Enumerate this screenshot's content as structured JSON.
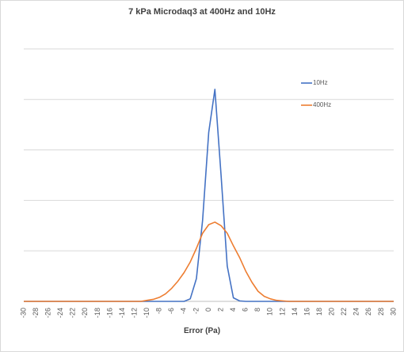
{
  "chart_data": {
    "type": "line",
    "title": "7 kPa Microdaq3 at 400Hz and 10Hz",
    "xlabel": "Error (Pa)",
    "ylabel": "",
    "categories": [
      -30,
      -29,
      -28,
      -27,
      -26,
      -25,
      -24,
      -23,
      -22,
      -21,
      -20,
      -19,
      -18,
      -17,
      -16,
      -15,
      -14,
      -13,
      -12,
      -11,
      -10,
      -9,
      -8,
      -7,
      -6,
      -5,
      -4,
      -3,
      -2,
      -1,
      0,
      1,
      2,
      3,
      4,
      5,
      6,
      7,
      8,
      9,
      10,
      11,
      12,
      13,
      14,
      15,
      16,
      17,
      18,
      19,
      20,
      21,
      22,
      23,
      24,
      25,
      26,
      27,
      28,
      29,
      30
    ],
    "tick_labels": [
      "-30",
      "-28",
      "-26",
      "-24",
      "-22",
      "-20",
      "-18",
      "-16",
      "-14",
      "-12",
      "-10",
      "-8",
      "-6",
      "-4",
      "-2",
      "0",
      "2",
      "4",
      "6",
      "8",
      "10",
      "12",
      "14",
      "16",
      "18",
      "20",
      "22",
      "24",
      "26",
      "28",
      "30"
    ],
    "ylim": [
      0,
      5.5
    ],
    "y_gridlines": [
      0,
      1,
      2,
      3,
      4,
      5
    ],
    "show_y_tick_labels": false,
    "legend_position": "right",
    "series": [
      {
        "name": "10Hz",
        "color": "#4472c4",
        "values": [
          0,
          0,
          0,
          0,
          0,
          0,
          0,
          0,
          0,
          0,
          0,
          0,
          0,
          0,
          0,
          0,
          0,
          0,
          0,
          0,
          0,
          0,
          0,
          0,
          0,
          0,
          0,
          0.05,
          0.45,
          1.6,
          3.35,
          4.2,
          2.5,
          0.7,
          0.07,
          0.01,
          0,
          0,
          0,
          0,
          0,
          0,
          0,
          0,
          0,
          0,
          0,
          0,
          0,
          0,
          0,
          0,
          0,
          0,
          0,
          0,
          0,
          0,
          0,
          0,
          0
        ]
      },
      {
        "name": "400Hz",
        "color": "#ed7d31",
        "values": [
          0,
          0,
          0,
          0,
          0,
          0,
          0,
          0,
          0,
          0,
          0,
          0,
          0,
          0,
          0,
          0,
          0,
          0,
          0,
          0,
          0.02,
          0.04,
          0.08,
          0.15,
          0.26,
          0.4,
          0.57,
          0.78,
          1.05,
          1.35,
          1.52,
          1.57,
          1.5,
          1.35,
          1.1,
          0.87,
          0.6,
          0.38,
          0.2,
          0.1,
          0.05,
          0.02,
          0.01,
          0,
          0,
          0,
          0,
          0,
          0,
          0,
          0,
          0,
          0,
          0,
          0,
          0,
          0,
          0,
          0,
          0,
          0
        ]
      }
    ]
  }
}
